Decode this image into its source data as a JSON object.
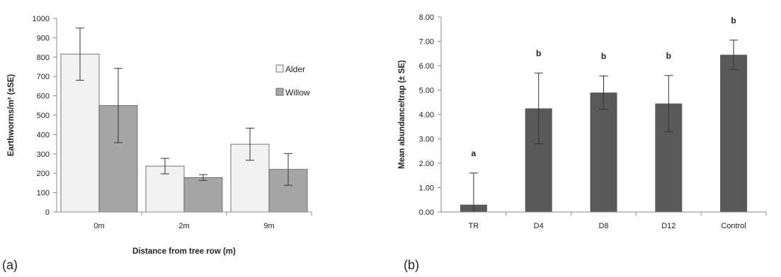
{
  "colors": {
    "alder": "#f2f2f2",
    "willow": "#a6a6a6",
    "bar_b": "#595959",
    "axis": "#888888",
    "error": "#333333"
  },
  "chart_data": [
    {
      "type": "bar",
      "panel_label": "(a)",
      "categories": [
        "0m",
        "2m",
        "9m"
      ],
      "series": [
        {
          "name": "Alder",
          "values": [
            815,
            237,
            350
          ],
          "errors": [
            135,
            40,
            83
          ]
        },
        {
          "name": "Willow",
          "values": [
            550,
            178,
            220
          ],
          "errors": [
            192,
            15,
            82
          ]
        }
      ],
      "xlabel": "Distance from tree row (m)",
      "ylabel": "Earthworms/m² (±SE)",
      "ylim": [
        0,
        1000
      ],
      "yticks": [
        "0",
        "100",
        "200",
        "300",
        "400",
        "500",
        "600",
        "700",
        "800",
        "900",
        "1000"
      ],
      "legend_position": "right",
      "grid": false
    },
    {
      "type": "bar",
      "panel_label": "(b)",
      "categories": [
        "TR",
        "D4",
        "D8",
        "D12",
        "Control"
      ],
      "values": [
        0.3,
        4.25,
        4.9,
        4.45,
        6.45
      ],
      "errors": [
        1.3,
        1.45,
        0.68,
        1.15,
        0.6
      ],
      "significance": [
        "a",
        "b",
        "b",
        "b",
        "b"
      ],
      "xlabel": "",
      "ylabel": "Mean abundance/trap (± SE)",
      "ylim": [
        0,
        8
      ],
      "yticks": [
        "0.00",
        "1.00",
        "2.00",
        "3.00",
        "4.00",
        "5.00",
        "6.00",
        "7.00",
        "8.00"
      ],
      "grid": false
    }
  ]
}
